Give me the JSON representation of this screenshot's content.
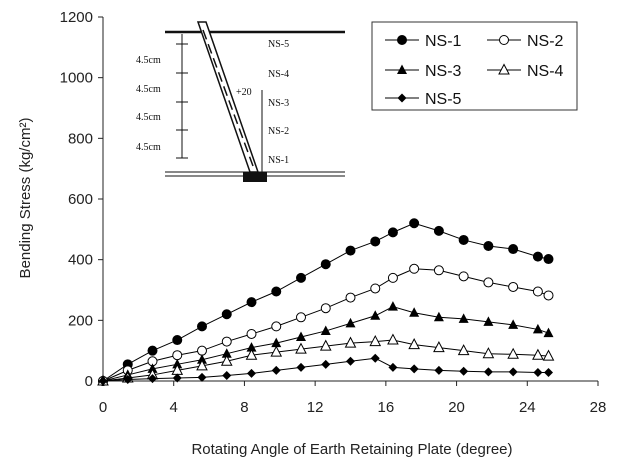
{
  "chart_data": {
    "type": "line",
    "xlabel": "Rotating Angle of Earth Retaining Plate (degree)",
    "ylabel": "Bending Stress (kg/cm²)",
    "xlim": [
      0,
      28
    ],
    "ylim": [
      0,
      1200
    ],
    "xticks": [
      0,
      4,
      8,
      12,
      16,
      20,
      24,
      28
    ],
    "yticks": [
      0,
      200,
      400,
      600,
      800,
      1000,
      1200
    ],
    "grid": false,
    "legend": "top-right",
    "x": [
      0,
      1.4,
      2.8,
      4.2,
      5.6,
      7.0,
      8.4,
      9.8,
      11.2,
      12.6,
      14.0,
      15.4,
      16.4,
      17.6,
      19.0,
      20.4,
      21.8,
      23.2,
      24.6,
      25.2
    ],
    "series": [
      {
        "name": "NS-1",
        "marker": "filled-circle",
        "values": [
          0,
          55,
          100,
          135,
          180,
          220,
          260,
          295,
          340,
          385,
          430,
          460,
          490,
          520,
          495,
          465,
          445,
          435,
          410,
          402
        ]
      },
      {
        "name": "NS-2",
        "marker": "open-circle",
        "values": [
          0,
          35,
          65,
          85,
          100,
          130,
          155,
          180,
          210,
          240,
          275,
          305,
          340,
          370,
          365,
          345,
          325,
          310,
          295,
          282
        ]
      },
      {
        "name": "NS-3",
        "marker": "filled-triangle",
        "values": [
          0,
          20,
          40,
          55,
          70,
          90,
          110,
          125,
          145,
          165,
          190,
          215,
          245,
          225,
          210,
          205,
          195,
          185,
          170,
          158
        ]
      },
      {
        "name": "NS-4",
        "marker": "open-triangle",
        "values": [
          0,
          10,
          20,
          35,
          50,
          65,
          85,
          95,
          105,
          115,
          125,
          130,
          135,
          120,
          110,
          100,
          90,
          88,
          85,
          82
        ]
      },
      {
        "name": "NS-5",
        "marker": "filled-diamond",
        "values": [
          0,
          5,
          8,
          10,
          12,
          18,
          25,
          35,
          45,
          55,
          65,
          75,
          45,
          40,
          35,
          32,
          30,
          30,
          28,
          28
        ]
      }
    ]
  },
  "inset": {
    "dimensions": [
      "4.5cm",
      "4.5cm",
      "4.5cm",
      "4.5cm"
    ],
    "gauges": [
      "NS-5",
      "NS-4",
      "NS-3",
      "NS-2",
      "NS-1"
    ],
    "angle_label": "+20"
  }
}
